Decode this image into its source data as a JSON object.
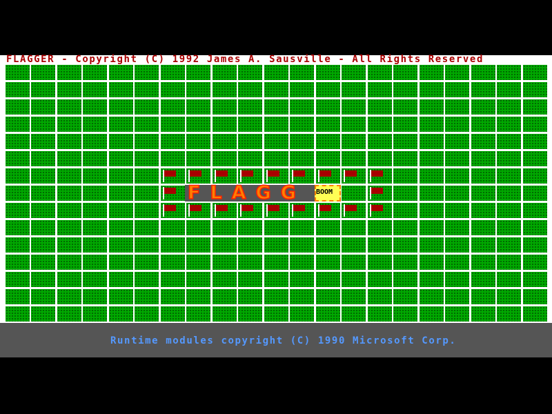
{
  "header": {
    "title": "FLAGGER - Copyright (C) 1992 James A. Sausville - All Rights Reserved"
  },
  "board": {
    "rows": 15,
    "cols": 21,
    "flags": [
      [
        6,
        6
      ],
      [
        6,
        7
      ],
      [
        6,
        8
      ],
      [
        6,
        9
      ],
      [
        6,
        10
      ],
      [
        6,
        11
      ],
      [
        6,
        12
      ],
      [
        6,
        13
      ],
      [
        6,
        14
      ],
      [
        7,
        6
      ],
      [
        7,
        14
      ],
      [
        8,
        6
      ],
      [
        8,
        7
      ],
      [
        8,
        8
      ],
      [
        8,
        9
      ],
      [
        8,
        10
      ],
      [
        8,
        11
      ],
      [
        8,
        12
      ],
      [
        8,
        13
      ],
      [
        8,
        14
      ]
    ],
    "colors": {
      "grass": "#00a800",
      "flag": "#a80000",
      "grid_line": "#ffffff"
    }
  },
  "banner": {
    "text": "FLAGG",
    "boom": "BOOM"
  },
  "footer": {
    "text": "Runtime modules copyright (C) 1990 Microsoft Corp."
  }
}
